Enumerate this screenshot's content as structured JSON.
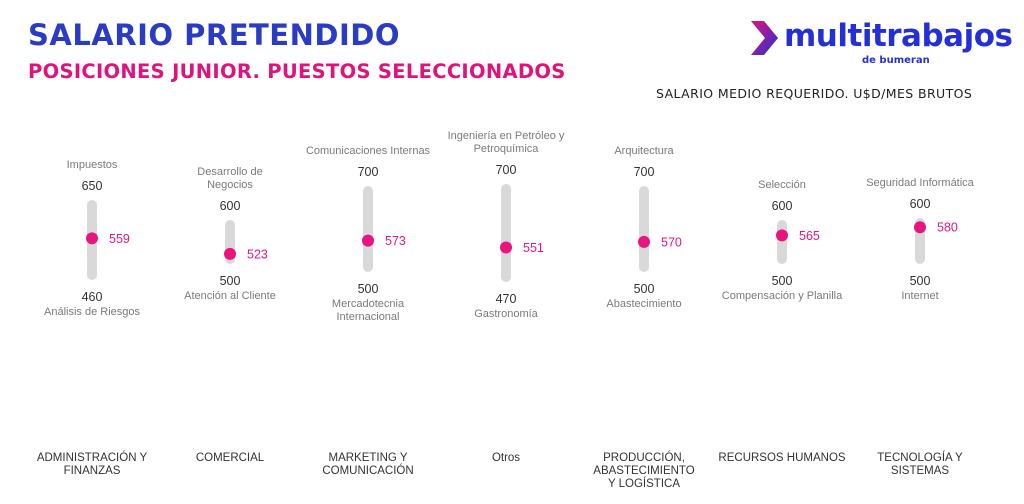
{
  "header": {
    "title": "SALARIO PRETENDIDO",
    "subtitle": "POSICIONES JUNIOR. PUESTOS SELECCIONADOS",
    "unit_label": "SALARIO MEDIO REQUERIDO. U$D/MES BRUTOS"
  },
  "logo": {
    "wordmark": "multitrabajos",
    "tagline": "de bumeran",
    "icon": "chevron-arrow-icon"
  },
  "colors": {
    "title": "#2a3bc4",
    "subtitle": "#e0137a",
    "marker": "#e8157f",
    "track": "#d9d9d9",
    "brand": "#2430d6"
  },
  "chart_data": {
    "type": "range",
    "categories": [
      "ADMINISTRACIÓN Y FINANZAS",
      "COMERCIAL",
      "MARKETING Y COMUNICACIÓN",
      "Otros",
      "PRODUCCIÓN, ABASTECIMIENTO Y LOGÍSTICA",
      "RECURSOS HUMANOS",
      "TECNOLOGÍA Y SISTEMAS"
    ],
    "items": [
      {
        "category": "ADMINISTRACIÓN Y FINANZAS",
        "max": 650,
        "max_label": "Impuestos",
        "min": 460,
        "min_label": "Análisis de Riesgos",
        "avg": 559
      },
      {
        "category": "COMERCIAL",
        "max": 600,
        "max_label": "Desarrollo de Negocios",
        "min": 500,
        "min_label": "Atención al Cliente",
        "avg": 523
      },
      {
        "category": "MARKETING Y COMUNICACIÓN",
        "max": 700,
        "max_label": "Comunicaciones Internas",
        "min": 500,
        "min_label": "Mercadotecnia Internacional",
        "avg": 573
      },
      {
        "category": "Otros",
        "max": 700,
        "max_label": "Ingeniería en Petróleo y Petroquímica",
        "min": 470,
        "min_label": "Gastronomía",
        "avg": 551
      },
      {
        "category": "PRODUCCIÓN, ABASTECIMIENTO Y LOGÍSTICA",
        "max": 700,
        "max_label": "Arquitectura",
        "min": 500,
        "min_label": "Abastecimiento",
        "avg": 570
      },
      {
        "category": "RECURSOS HUMANOS",
        "max": 600,
        "max_label": "Selección",
        "min": 500,
        "min_label": "Compensación y Planilla",
        "avg": 565
      },
      {
        "category": "TECNOLOGÍA Y SISTEMAS",
        "max": 600,
        "max_label": "Seguridad Informática",
        "min": 500,
        "min_label": "Internet",
        "avg": 580
      }
    ]
  }
}
